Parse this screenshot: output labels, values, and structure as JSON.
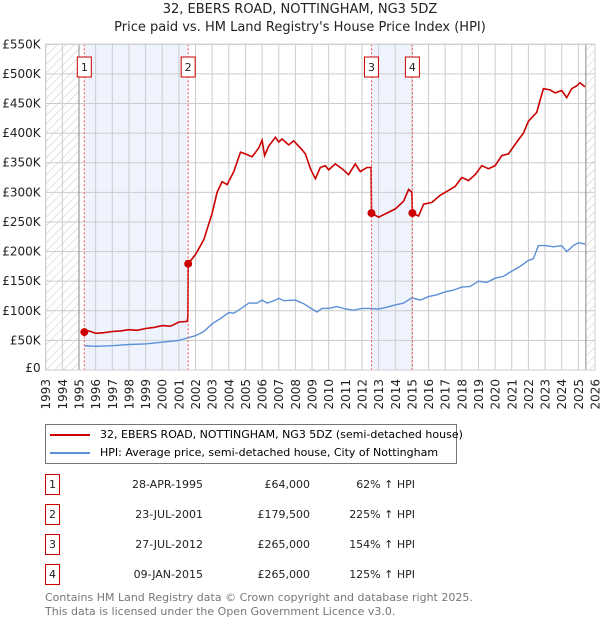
{
  "chart_data": {
    "type": "line",
    "title": "32, EBERS ROAD, NOTTINGHAM, NG3 5DZ",
    "subtitle": "Price paid vs. HM Land Registry's House Price Index (HPI)",
    "xlim": [
      1993,
      2026
    ],
    "ylim": [
      0,
      550000
    ],
    "x_ticks": [
      "1993",
      "1994",
      "1995",
      "1996",
      "1997",
      "1998",
      "1999",
      "2000",
      "2001",
      "2002",
      "2003",
      "2004",
      "2005",
      "2006",
      "2007",
      "2008",
      "2009",
      "2010",
      "2011",
      "2012",
      "2013",
      "2014",
      "2015",
      "2016",
      "2017",
      "2018",
      "2019",
      "2020",
      "2021",
      "2022",
      "2023",
      "2024",
      "2025",
      "2026"
    ],
    "y_ticks": [
      {
        "value": 0,
        "label": "£0"
      },
      {
        "value": 50000,
        "label": "£50K"
      },
      {
        "value": 100000,
        "label": "£100K"
      },
      {
        "value": 150000,
        "label": "£150K"
      },
      {
        "value": 200000,
        "label": "£200K"
      },
      {
        "value": 250000,
        "label": "£250K"
      },
      {
        "value": 300000,
        "label": "£300K"
      },
      {
        "value": 350000,
        "label": "£350K"
      },
      {
        "value": 400000,
        "label": "£400K"
      },
      {
        "value": 450000,
        "label": "£450K"
      },
      {
        "value": 500000,
        "label": "£500K"
      },
      {
        "value": 550000,
        "label": "£550K"
      }
    ],
    "grid": true,
    "hatched_ranges": [
      [
        1993,
        1995.0
      ],
      [
        2025.45,
        2026
      ]
    ],
    "shaded_ranges": [
      [
        1995.32,
        2001.56
      ],
      [
        2012.57,
        2015.03
      ]
    ],
    "series": [
      {
        "name": "32, EBERS ROAD, NOTTINGHAM, NG3 5DZ (semi-detached house)",
        "color": "#cc0000",
        "points": [
          [
            1995.32,
            64
          ],
          [
            1995.6,
            66
          ],
          [
            1996,
            62
          ],
          [
            1996.5,
            63
          ],
          [
            1997,
            65
          ],
          [
            1997.5,
            66
          ],
          [
            1998,
            68
          ],
          [
            1998.5,
            67
          ],
          [
            1999,
            70
          ],
          [
            1999.5,
            72
          ],
          [
            2000,
            75
          ],
          [
            2000.5,
            74
          ],
          [
            2001,
            81
          ],
          [
            2001.5,
            82
          ],
          [
            2001.54,
            90
          ],
          [
            2001.56,
            179.5
          ],
          [
            2002,
            195
          ],
          [
            2002.5,
            220
          ],
          [
            2003,
            265
          ],
          [
            2003.3,
            300
          ],
          [
            2003.6,
            318
          ],
          [
            2003.9,
            313
          ],
          [
            2004.3,
            335
          ],
          [
            2004.7,
            368
          ],
          [
            2005,
            365
          ],
          [
            2005.4,
            360
          ],
          [
            2005.8,
            375
          ],
          [
            2006,
            388
          ],
          [
            2006.15,
            362
          ],
          [
            2006.4,
            378
          ],
          [
            2006.8,
            393
          ],
          [
            2007,
            385
          ],
          [
            2007.2,
            390
          ],
          [
            2007.6,
            380
          ],
          [
            2007.9,
            387
          ],
          [
            2008.2,
            378
          ],
          [
            2008.4,
            372
          ],
          [
            2008.6,
            365
          ],
          [
            2008.9,
            340
          ],
          [
            2009.2,
            323
          ],
          [
            2009.5,
            342
          ],
          [
            2009.8,
            345
          ],
          [
            2010,
            338
          ],
          [
            2010.4,
            348
          ],
          [
            2010.8,
            340
          ],
          [
            2011.2,
            330
          ],
          [
            2011.6,
            348
          ],
          [
            2011.9,
            335
          ],
          [
            2012.3,
            342
          ],
          [
            2012.55,
            342
          ],
          [
            2012.57,
            265
          ],
          [
            2013,
            258
          ],
          [
            2013.5,
            265
          ],
          [
            2014,
            272
          ],
          [
            2014.5,
            285
          ],
          [
            2014.8,
            305
          ],
          [
            2015.0,
            300
          ],
          [
            2015.03,
            265
          ],
          [
            2015.4,
            260
          ],
          [
            2015.7,
            280
          ],
          [
            2016.2,
            283
          ],
          [
            2016.7,
            295
          ],
          [
            2017.3,
            305
          ],
          [
            2017.6,
            310
          ],
          [
            2018,
            325
          ],
          [
            2018.4,
            320
          ],
          [
            2018.8,
            330
          ],
          [
            2019.2,
            345
          ],
          [
            2019.6,
            340
          ],
          [
            2020,
            345
          ],
          [
            2020.4,
            362
          ],
          [
            2020.8,
            365
          ],
          [
            2021.3,
            385
          ],
          [
            2021.7,
            400
          ],
          [
            2022,
            420
          ],
          [
            2022.5,
            435
          ],
          [
            2022.9,
            475
          ],
          [
            2023.3,
            473
          ],
          [
            2023.6,
            468
          ],
          [
            2024,
            472
          ],
          [
            2024.3,
            460
          ],
          [
            2024.6,
            475
          ],
          [
            2024.9,
            480
          ],
          [
            2025.1,
            485
          ],
          [
            2025.4,
            478
          ]
        ]
      },
      {
        "name": "HPI: Average price, semi-detached house, City of Nottingham",
        "color": "#5b8fd6",
        "points": [
          [
            1995.32,
            41
          ],
          [
            1996,
            40
          ],
          [
            1997,
            41
          ],
          [
            1998,
            43
          ],
          [
            1999,
            44
          ],
          [
            2000,
            47
          ],
          [
            2001,
            50
          ],
          [
            2001.5,
            54
          ],
          [
            2002,
            58
          ],
          [
            2002.5,
            65
          ],
          [
            2003,
            78
          ],
          [
            2003.5,
            87
          ],
          [
            2004,
            97
          ],
          [
            2004.3,
            96
          ],
          [
            2004.8,
            105
          ],
          [
            2005.2,
            113
          ],
          [
            2005.7,
            113
          ],
          [
            2006,
            118
          ],
          [
            2006.3,
            113
          ],
          [
            2006.8,
            118
          ],
          [
            2007,
            121
          ],
          [
            2007.3,
            117
          ],
          [
            2008,
            118
          ],
          [
            2008.5,
            112
          ],
          [
            2009,
            103
          ],
          [
            2009.3,
            98
          ],
          [
            2009.6,
            104
          ],
          [
            2010,
            104
          ],
          [
            2010.5,
            107
          ],
          [
            2011,
            103
          ],
          [
            2011.5,
            101
          ],
          [
            2012,
            104
          ],
          [
            2012.5,
            104
          ],
          [
            2013,
            103
          ],
          [
            2013.5,
            106
          ],
          [
            2014,
            110
          ],
          [
            2014.5,
            113
          ],
          [
            2015,
            122
          ],
          [
            2015.5,
            118
          ],
          [
            2016,
            124
          ],
          [
            2016.5,
            127
          ],
          [
            2017,
            132
          ],
          [
            2017.5,
            135
          ],
          [
            2018,
            140
          ],
          [
            2018.5,
            141
          ],
          [
            2019,
            150
          ],
          [
            2019.5,
            148
          ],
          [
            2020,
            155
          ],
          [
            2020.5,
            158
          ],
          [
            2021,
            167
          ],
          [
            2021.5,
            175
          ],
          [
            2022,
            185
          ],
          [
            2022.3,
            188
          ],
          [
            2022.6,
            210
          ],
          [
            2023,
            210
          ],
          [
            2023.5,
            208
          ],
          [
            2024,
            210
          ],
          [
            2024.3,
            200
          ],
          [
            2024.7,
            210
          ],
          [
            2025,
            215
          ],
          [
            2025.4,
            213
          ]
        ]
      }
    ],
    "sales": [
      {
        "label": "1",
        "x": 1995.32,
        "value": 64000
      },
      {
        "label": "2",
        "x": 2001.56,
        "value": 179500
      },
      {
        "label": "3",
        "x": 2012.57,
        "value": 265000
      },
      {
        "label": "4",
        "x": 2015.03,
        "value": 265000
      }
    ]
  },
  "header": {
    "title": "32, EBERS ROAD, NOTTINGHAM, NG3 5DZ",
    "subtitle": "Price paid vs. HM Land Registry's House Price Index (HPI)"
  },
  "legend": {
    "property": "32, EBERS ROAD, NOTTINGHAM, NG3 5DZ (semi-detached house)",
    "hpi": "HPI: Average price, semi-detached house, City of Nottingham"
  },
  "transactions": [
    {
      "num": "1",
      "date": "28-APR-1995",
      "price": "£64,000",
      "hpi": "62% ↑ HPI"
    },
    {
      "num": "2",
      "date": "23-JUL-2001",
      "price": "£179,500",
      "hpi": "225% ↑ HPI"
    },
    {
      "num": "3",
      "date": "27-JUL-2012",
      "price": "£265,000",
      "hpi": "154% ↑ HPI"
    },
    {
      "num": "4",
      "date": "09-JAN-2015",
      "price": "£265,000",
      "hpi": "125% ↑ HPI"
    }
  ],
  "footer": {
    "line1": "Contains HM Land Registry data © Crown copyright and database right 2025.",
    "line2": "This data is licensed under the Open Government Licence v3.0."
  }
}
